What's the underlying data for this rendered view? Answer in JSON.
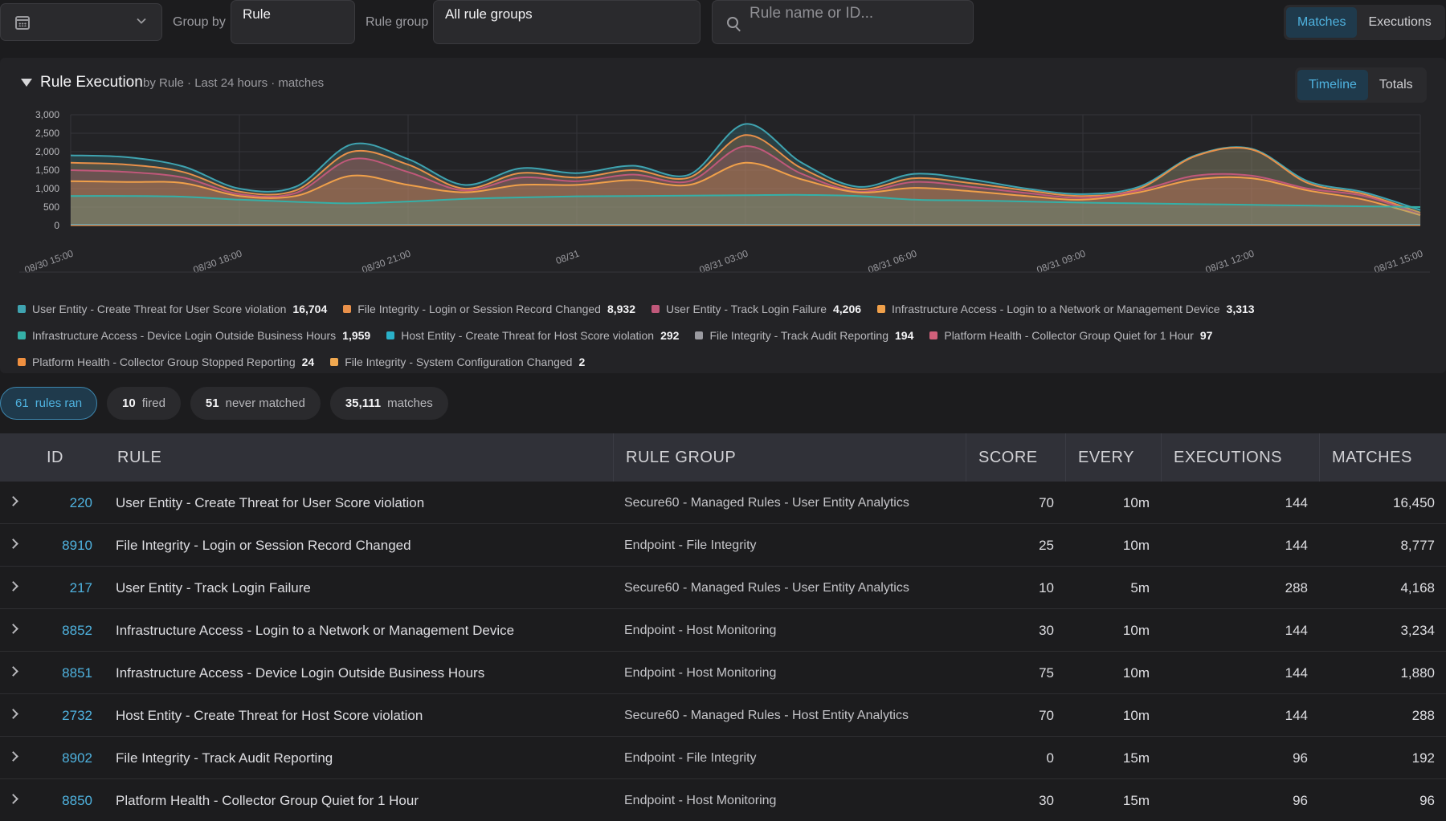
{
  "toolbar": {
    "group_by_label": "Group by",
    "group_by_value": "Rule",
    "rule_group_label": "Rule group",
    "rule_group_value": "All rule groups",
    "search_placeholder": "Rule name or ID...",
    "view_modes": [
      "Matches",
      "Executions"
    ],
    "active_view_mode": "Matches"
  },
  "panel": {
    "title": "Rule Execution",
    "subtitle": "by Rule · Last 24 hours · matches",
    "chart_modes": [
      "Timeline",
      "Totals"
    ],
    "active_chart_mode": "Timeline"
  },
  "chart_data": {
    "type": "area",
    "stacked": false,
    "x_ticks": [
      "08/30 15:00",
      "08/30 18:00",
      "08/30 21:00",
      "08/31",
      "08/31 03:00",
      "08/31 06:00",
      "08/31 09:00",
      "08/31 12:00",
      "08/31 15:00"
    ],
    "ylim": [
      0,
      3000
    ],
    "y_ticks": [
      0,
      500,
      1000,
      1500,
      2000,
      2500,
      3000
    ],
    "grid": true,
    "x_hours": [
      0,
      1,
      2,
      3,
      4,
      5,
      6,
      7,
      8,
      9,
      10,
      11,
      12,
      13,
      14,
      15,
      16,
      17,
      18,
      19,
      20,
      21,
      22,
      23,
      24
    ],
    "series": [
      {
        "name": "User Entity - Create Threat for User Score violation",
        "color": "#3fa3b0",
        "values": [
          1900,
          1850,
          1600,
          1000,
          1050,
          2200,
          1800,
          1100,
          1550,
          1420,
          1620,
          1380,
          2750,
          1700,
          1050,
          1400,
          1250,
          1000,
          850,
          1050,
          1900,
          2080,
          1200,
          900,
          420
        ]
      },
      {
        "name": "File Integrity - Login or Session Record Changed",
        "color": "#e8904a",
        "values": [
          1700,
          1650,
          1450,
          920,
          950,
          2000,
          1650,
          1000,
          1420,
          1300,
          1500,
          1300,
          2450,
          1550,
          980,
          1280,
          1150,
          950,
          800,
          1000,
          1880,
          2060,
          1150,
          850,
          350
        ]
      },
      {
        "name": "User Entity - Track Login Failure",
        "color": "#c0587a",
        "values": [
          1500,
          1450,
          1300,
          850,
          880,
          1800,
          1450,
          950,
          1300,
          1200,
          1380,
          1200,
          2150,
          1400,
          920,
          1180,
          1050,
          880,
          750,
          950,
          1350,
          1350,
          1000,
          800,
          300
        ]
      },
      {
        "name": "Infrastructure Access - Login to a Network or Management Device",
        "color": "#f0a04a",
        "values": [
          1200,
          1180,
          1150,
          800,
          800,
          1350,
          1100,
          900,
          1100,
          1100,
          1230,
          1100,
          1700,
          1250,
          900,
          1020,
          930,
          800,
          700,
          900,
          1250,
          1280,
          950,
          700,
          280
        ]
      },
      {
        "name": "Infrastructure Access - Device Login Outside Business Hours",
        "color": "#35b0a8",
        "values": [
          800,
          800,
          780,
          700,
          640,
          600,
          650,
          720,
          760,
          790,
          800,
          810,
          820,
          830,
          800,
          700,
          680,
          650,
          620,
          600,
          580,
          560,
          540,
          520,
          500
        ]
      },
      {
        "name": "Host Entity - Create Threat for Host Score violation",
        "color": "#2ab0c8",
        "values": [
          30,
          30,
          30,
          30,
          30,
          30,
          30,
          30,
          30,
          30,
          30,
          30,
          30,
          30,
          30,
          30,
          30,
          30,
          30,
          30,
          30,
          30,
          30,
          30,
          30
        ]
      },
      {
        "name": "File Integrity - Track Audit Reporting",
        "color": "#9a9aa0",
        "values": [
          20,
          20,
          20,
          20,
          20,
          20,
          20,
          20,
          20,
          20,
          20,
          20,
          20,
          20,
          20,
          20,
          20,
          20,
          20,
          20,
          20,
          20,
          20,
          20,
          20
        ]
      },
      {
        "name": "Platform Health - Collector Group Quiet for 1 Hour",
        "color": "#d0607a",
        "values": [
          5,
          5,
          5,
          5,
          5,
          5,
          5,
          5,
          5,
          5,
          5,
          5,
          5,
          5,
          5,
          5,
          5,
          5,
          5,
          5,
          5,
          5,
          5,
          5,
          5
        ]
      },
      {
        "name": "Platform Health - Collector Group Stopped Reporting",
        "color": "#f09040",
        "values": [
          1,
          1,
          1,
          1,
          1,
          1,
          1,
          1,
          1,
          1,
          1,
          1,
          1,
          1,
          1,
          1,
          1,
          1,
          1,
          1,
          1,
          1,
          1,
          1,
          1
        ]
      },
      {
        "name": "File Integrity - System Configuration Changed",
        "color": "#f0a850",
        "values": [
          0,
          0,
          0,
          0,
          0,
          0,
          0,
          0,
          0,
          0,
          0,
          0,
          0,
          0,
          0,
          0,
          0,
          0,
          0,
          0,
          0,
          0,
          0,
          0,
          0
        ]
      }
    ]
  },
  "legend_rows": [
    [
      {
        "name": "User Entity - Create Threat for User Score violation",
        "value": "16,704",
        "color": "#3fa3b0"
      },
      {
        "name": "File Integrity - Login or Session Record Changed",
        "value": "8,932",
        "color": "#e8904a"
      },
      {
        "name": "User Entity - Track Login Failure",
        "value": "4,206",
        "color": "#c0587a"
      },
      {
        "name": "Infrastructure Access - Login to a Network or Management Device",
        "value": "3,313",
        "color": "#f0a04a"
      }
    ],
    [
      {
        "name": "Infrastructure Access - Device Login Outside Business Hours",
        "value": "1,959",
        "color": "#35b0a8"
      },
      {
        "name": "Host Entity - Create Threat for Host Score violation",
        "value": "292",
        "color": "#2ab0c8"
      },
      {
        "name": "File Integrity - Track Audit Reporting",
        "value": "194",
        "color": "#9a9aa0"
      },
      {
        "name": "Platform Health - Collector Group Quiet for 1 Hour",
        "value": "97",
        "color": "#d0607a"
      }
    ],
    [
      {
        "name": "Platform Health - Collector Group Stopped Reporting",
        "value": "24",
        "color": "#f09040"
      },
      {
        "name": "File Integrity - System Configuration Changed",
        "value": "2",
        "color": "#f0a850"
      }
    ]
  ],
  "summary": {
    "rules_ran": "61",
    "rules_ran_label": "rules ran",
    "fired": "10",
    "fired_label": "fired",
    "never_matched": "51",
    "never_matched_label": "never matched",
    "matches": "35,111",
    "matches_label": "matches"
  },
  "table": {
    "headers": {
      "id": "ID",
      "rule": "RULE",
      "group": "RULE GROUP",
      "score": "SCORE",
      "every": "EVERY",
      "executions": "EXECUTIONS",
      "matches": "MATCHES"
    },
    "rows": [
      {
        "id": "220",
        "rule": "User Entity - Create Threat for User Score violation",
        "group": "Secure60 - Managed Rules - User Entity Analytics",
        "score": "70",
        "every": "10m",
        "executions": "144",
        "matches": "16,450"
      },
      {
        "id": "8910",
        "rule": "File Integrity - Login or Session Record Changed",
        "group": "Endpoint - File Integrity",
        "score": "25",
        "every": "10m",
        "executions": "144",
        "matches": "8,777"
      },
      {
        "id": "217",
        "rule": "User Entity - Track Login Failure",
        "group": "Secure60 - Managed Rules - User Entity Analytics",
        "score": "10",
        "every": "5m",
        "executions": "288",
        "matches": "4,168"
      },
      {
        "id": "8852",
        "rule": "Infrastructure Access - Login to a Network or Management Device",
        "group": "Endpoint - Host Monitoring",
        "score": "30",
        "every": "10m",
        "executions": "144",
        "matches": "3,234"
      },
      {
        "id": "8851",
        "rule": "Infrastructure Access - Device Login Outside Business Hours",
        "group": "Endpoint - Host Monitoring",
        "score": "75",
        "every": "10m",
        "executions": "144",
        "matches": "1,880"
      },
      {
        "id": "2732",
        "rule": "Host Entity - Create Threat for Host Score violation",
        "group": "Secure60 - Managed Rules - Host Entity Analytics",
        "score": "70",
        "every": "10m",
        "executions": "144",
        "matches": "288"
      },
      {
        "id": "8902",
        "rule": "File Integrity - Track Audit Reporting",
        "group": "Endpoint - File Integrity",
        "score": "0",
        "every": "15m",
        "executions": "96",
        "matches": "192"
      },
      {
        "id": "8850",
        "rule": "Platform Health - Collector Group Quiet for 1 Hour",
        "group": "Endpoint - Host Monitoring",
        "score": "30",
        "every": "15m",
        "executions": "96",
        "matches": "96"
      }
    ]
  }
}
